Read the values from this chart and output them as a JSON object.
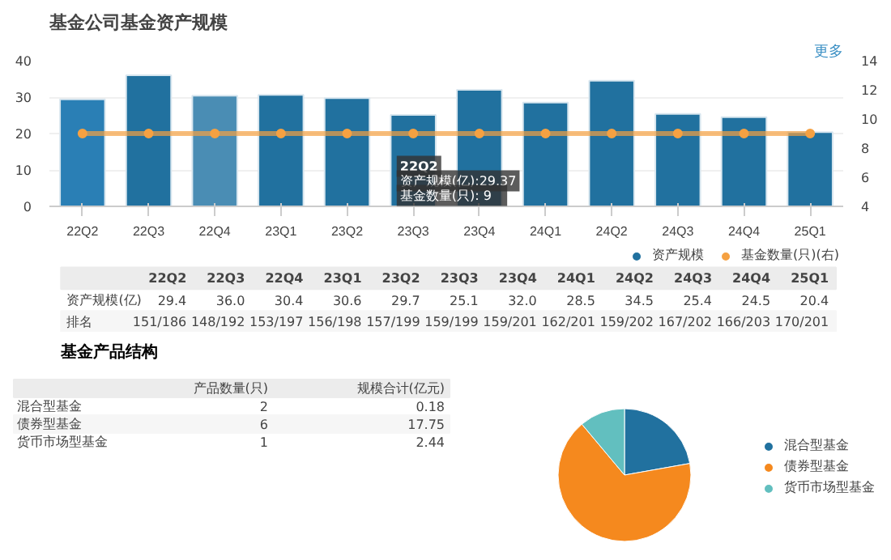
{
  "chart_data": [
    {
      "type": "bar",
      "title": "基金公司基金资产规模",
      "categories": [
        "22Q2",
        "22Q3",
        "22Q4",
        "23Q1",
        "23Q2",
        "23Q3",
        "23Q4",
        "24Q1",
        "24Q2",
        "24Q3",
        "24Q4",
        "25Q1"
      ],
      "series": [
        {
          "name": "资产规模",
          "type": "bar",
          "color": "#21719f",
          "colors": [
            "#2a7fb5",
            "#21719f",
            "#4a8db4",
            "#21719f",
            "#21719f",
            "#21719f",
            "#21719f",
            "#21719f",
            "#21719f",
            "#21719f",
            "#21719f",
            "#21719f"
          ],
          "values": [
            29.4,
            36.0,
            30.4,
            30.6,
            29.7,
            25.1,
            32.0,
            28.5,
            34.5,
            25.4,
            24.5,
            20.4
          ]
        },
        {
          "name": "基金数量(只)(右)",
          "type": "line",
          "axis": "y2",
          "color": "#f5a142",
          "marker": "circle",
          "values": [
            9,
            9,
            9,
            9,
            9,
            9,
            9,
            9,
            9,
            9,
            9,
            9
          ]
        }
      ],
      "ylim": [
        0,
        40
      ],
      "yticks": [
        0,
        10,
        20,
        30,
        40
      ],
      "y2lim": [
        4,
        14
      ],
      "y2ticks": [
        4,
        6,
        8,
        10,
        12,
        14
      ],
      "grid": "y",
      "legend": "bottom",
      "annotations": [
        "更多",
        "22Q2",
        "资产规模(亿):29.37",
        "基金数量(只):    9",
        "资产规模(亿)",
        "排名",
        "151/186",
        "148/192",
        "153/197",
        "156/198",
        "157/199",
        "159/199",
        "159/201",
        "162/201",
        "159/202",
        "167/202",
        "166/203",
        "170/201",
        "29.4",
        "36.0",
        "30.4",
        "30.6",
        "29.7",
        "25.1",
        "32.0",
        "28.5",
        "34.5",
        "25.4",
        "24.5",
        "20.4"
      ]
    },
    {
      "type": "other",
      "title": "基金产品结构",
      "annotations": [
        "产品数量(只)",
        "规模合计(亿元)",
        "混合型基金",
        "2",
        "0.18",
        "债券型基金",
        "6",
        "17.75",
        "货币市场型基金",
        "1",
        "2.44"
      ]
    },
    {
      "type": "pie",
      "categories": [
        "混合型基金",
        "债券型基金",
        "货币市场型基金"
      ],
      "values": [
        22.2,
        66.7,
        11.1
      ],
      "colors": [
        "#21719f",
        "#f5891e",
        "#62bfbf"
      ],
      "legend": "right"
    }
  ]
}
